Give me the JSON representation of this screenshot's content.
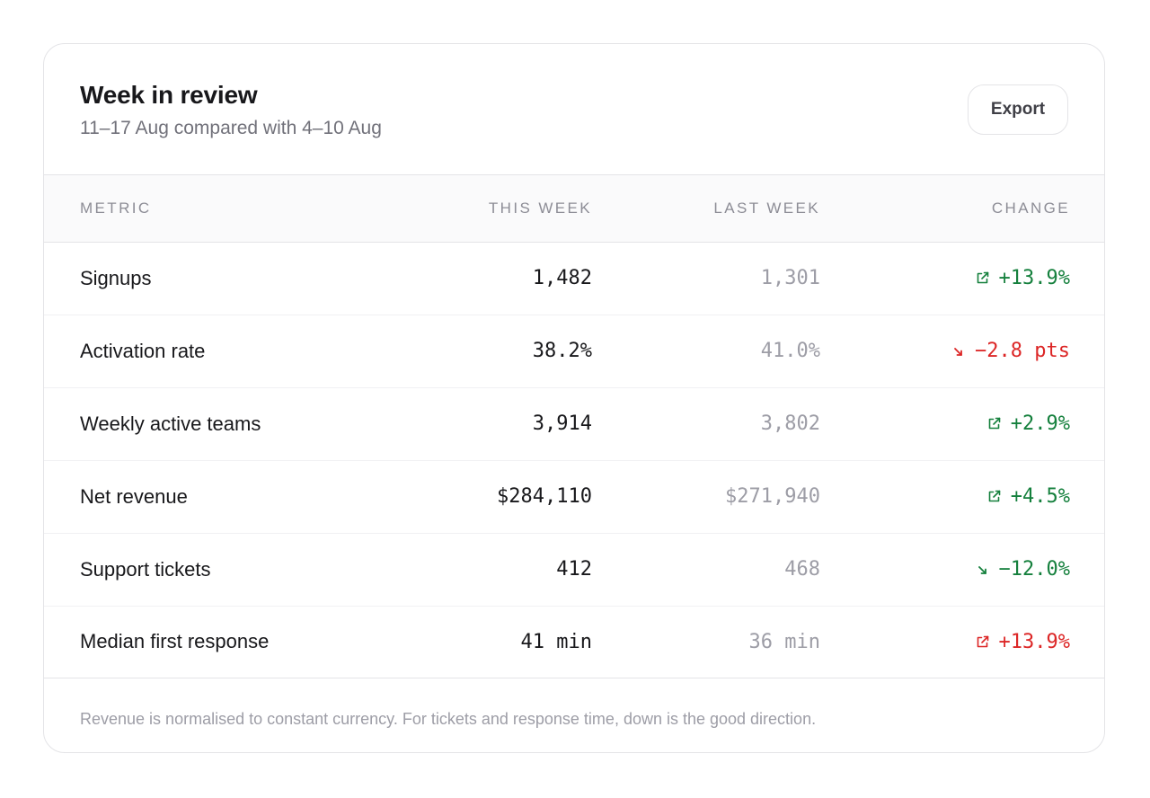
{
  "header": {
    "title": "Week in review",
    "subtitle": "11–17 Aug compared with 4–10 Aug",
    "export_label": "Export"
  },
  "table": {
    "columns": {
      "metric": "METRIC",
      "this_week": "THIS WEEK",
      "last_week": "LAST WEEK",
      "change": "CHANGE"
    },
    "rows": [
      {
        "metric": "Signups",
        "this_week": "1,482",
        "last_week": "1,301",
        "change": "+13.9%",
        "direction": "up",
        "sentiment": "good",
        "icon": "arrow-up-right-icon"
      },
      {
        "metric": "Activation rate",
        "this_week": "38.2%",
        "last_week": "41.0%",
        "change": "−2.8 pts",
        "direction": "down",
        "sentiment": "bad",
        "icon": "arrow-down-right-icon"
      },
      {
        "metric": "Weekly active teams",
        "this_week": "3,914",
        "last_week": "3,802",
        "change": "+2.9%",
        "direction": "up",
        "sentiment": "good",
        "icon": "arrow-up-right-icon"
      },
      {
        "metric": "Net revenue",
        "this_week": "$284,110",
        "last_week": "$271,940",
        "change": "+4.5%",
        "direction": "up",
        "sentiment": "good",
        "icon": "arrow-up-right-icon"
      },
      {
        "metric": "Support tickets",
        "this_week": "412",
        "last_week": "468",
        "change": "−12.0%",
        "direction": "down",
        "sentiment": "good",
        "icon": "arrow-down-right-icon"
      },
      {
        "metric": "Median first response",
        "this_week": "41 min",
        "last_week": "36 min",
        "change": "+13.9%",
        "direction": "up",
        "sentiment": "bad",
        "icon": "arrow-up-right-icon"
      }
    ]
  },
  "footnote": "Revenue is normalised to constant currency. For tickets and response time, down is the good direction.",
  "colors": {
    "good": "#15803d",
    "bad": "#dc2626",
    "text_primary": "#18181b",
    "text_muted": "#9d9da6",
    "border": "#e4e4e7"
  }
}
